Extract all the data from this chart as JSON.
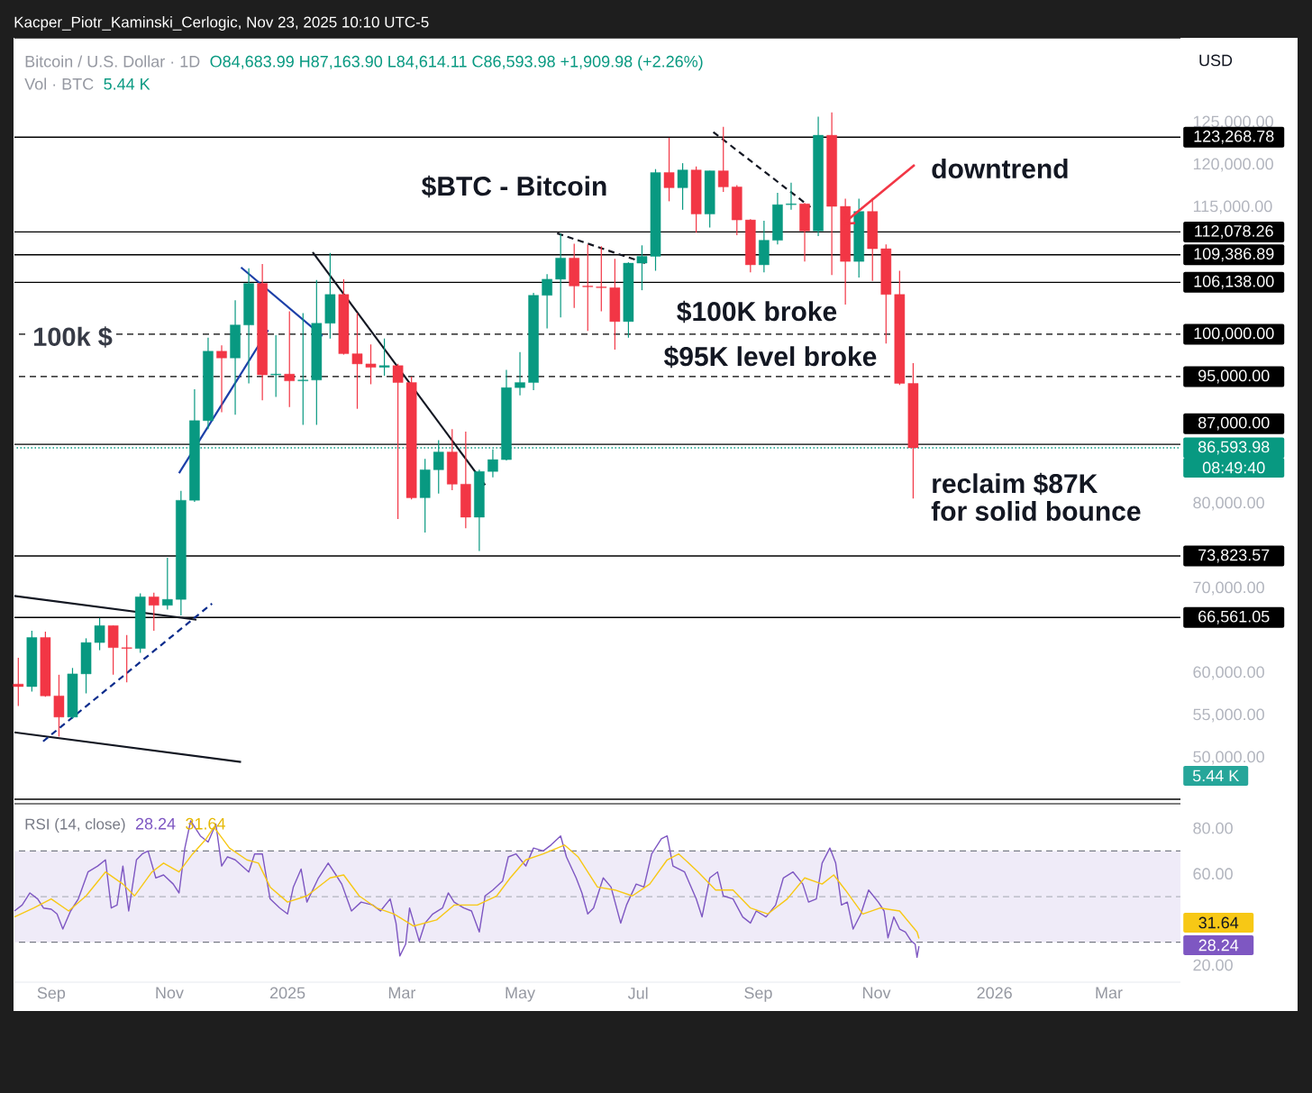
{
  "chart_data": [
    {
      "type": "candlestick",
      "title": "$BTC - Bitcoin",
      "subtitle": "Kacper_Piotr_Kaminski_Cerlogic, Nov 23, 2025 10:10 UTC-5",
      "x": [
        "2024-08-15",
        "2024-08-22",
        "2024-08-29",
        "2024-09-05",
        "2024-09-12",
        "2024-09-19",
        "2024-09-26",
        "2024-10-03",
        "2024-10-10",
        "2024-10-17",
        "2024-10-24",
        "2024-10-31",
        "2024-11-07",
        "2024-11-14",
        "2024-11-21",
        "2024-11-28",
        "2024-12-05",
        "2024-12-12",
        "2024-12-19",
        "2024-12-26",
        "2025-01-02",
        "2025-01-09",
        "2025-01-16",
        "2025-01-23",
        "2025-01-30",
        "2025-02-06",
        "2025-02-13",
        "2025-02-20",
        "2025-02-27",
        "2025-03-06",
        "2025-03-13",
        "2025-03-20",
        "2025-03-27",
        "2025-04-03",
        "2025-04-10",
        "2025-04-17",
        "2025-04-24",
        "2025-05-01",
        "2025-05-08",
        "2025-05-15",
        "2025-05-22",
        "2025-05-29",
        "2025-06-05",
        "2025-06-12",
        "2025-06-19",
        "2025-06-26",
        "2025-07-03",
        "2025-07-10",
        "2025-07-17",
        "2025-07-24",
        "2025-07-31",
        "2025-08-07",
        "2025-08-14",
        "2025-08-21",
        "2025-08-28",
        "2025-09-04",
        "2025-09-11",
        "2025-09-18",
        "2025-09-25",
        "2025-10-02",
        "2025-10-09",
        "2025-10-16",
        "2025-10-23",
        "2025-10-30",
        "2025-11-06",
        "2025-11-13",
        "2025-11-20"
      ],
      "ohlc": [
        [
          58700,
          61800,
          56100,
          58400
        ],
        [
          58400,
          65000,
          57800,
          64200
        ],
        [
          64200,
          64900,
          57200,
          57300
        ],
        [
          57300,
          59800,
          52500,
          54800
        ],
        [
          54800,
          60600,
          54600,
          59900
        ],
        [
          59900,
          64100,
          57600,
          63600
        ],
        [
          63600,
          66500,
          62700,
          65600
        ],
        [
          65600,
          65600,
          59800,
          63000
        ],
        [
          63000,
          64500,
          58900,
          62900
        ],
        [
          62900,
          69400,
          62400,
          69000
        ],
        [
          69000,
          69500,
          65000,
          68000
        ],
        [
          68000,
          73600,
          67500,
          68700
        ],
        [
          68700,
          81500,
          66800,
          80400
        ],
        [
          80400,
          93500,
          80200,
          89800
        ],
        [
          89800,
          99600,
          88800,
          98000
        ],
        [
          98000,
          98700,
          90800,
          97200
        ],
        [
          97200,
          104000,
          90500,
          101100
        ],
        [
          101100,
          107800,
          94200,
          106000
        ],
        [
          106000,
          108300,
          92200,
          95200
        ],
        [
          95200,
          99900,
          92600,
          95300
        ],
        [
          95300,
          102700,
          91400,
          94500
        ],
        [
          94500,
          102500,
          89300,
          94600
        ],
        [
          94600,
          106400,
          89300,
          101300
        ],
        [
          101300,
          109600,
          99500,
          104700
        ],
        [
          104700,
          106500,
          97600,
          97700
        ],
        [
          97700,
          102500,
          91200,
          96500
        ],
        [
          96500,
          98800,
          94100,
          96100
        ],
        [
          96100,
          99500,
          95100,
          96300
        ],
        [
          96300,
          96500,
          78200,
          94300
        ],
        [
          94300,
          95000,
          80500,
          80700
        ],
        [
          80700,
          85300,
          76600,
          84000
        ],
        [
          84000,
          87500,
          81200,
          86100
        ],
        [
          86100,
          88800,
          81600,
          82300
        ],
        [
          82300,
          88500,
          77100,
          78400
        ],
        [
          78400,
          84000,
          74400,
          83800
        ],
        [
          83800,
          86400,
          83100,
          85200
        ],
        [
          85200,
          95800,
          85100,
          93700
        ],
        [
          93700,
          97900,
          92800,
          94300
        ],
        [
          94300,
          104900,
          93400,
          104600
        ],
        [
          104600,
          107100,
          100700,
          106500
        ],
        [
          106500,
          111900,
          102000,
          109000
        ],
        [
          109000,
          110700,
          103100,
          105700
        ],
        [
          105700,
          110600,
          100400,
          105600
        ],
        [
          105600,
          110400,
          102700,
          105500
        ],
        [
          105500,
          108900,
          98200,
          101500
        ],
        [
          101500,
          108500,
          99600,
          108400
        ],
        [
          108400,
          110500,
          105200,
          109200
        ],
        [
          109200,
          119500,
          107500,
          119100
        ],
        [
          119100,
          123200,
          115700,
          117300
        ],
        [
          117300,
          120200,
          114700,
          119400
        ],
        [
          119400,
          119800,
          112000,
          114200
        ],
        [
          114200,
          119300,
          112600,
          119300
        ],
        [
          119300,
          124500,
          116800,
          117400
        ],
        [
          117400,
          117600,
          111700,
          113500
        ],
        [
          113500,
          113600,
          107300,
          108200
        ],
        [
          108200,
          113400,
          107300,
          111100
        ],
        [
          111100,
          116700,
          110600,
          115300
        ],
        [
          115300,
          117900,
          114700,
          115400
        ],
        [
          115400,
          115500,
          108600,
          112200
        ],
        [
          112200,
          125700,
          111600,
          123500
        ],
        [
          123500,
          126200,
          107000,
          115100
        ],
        [
          115100,
          116000,
          103500,
          108600
        ],
        [
          108600,
          116000,
          106700,
          114500
        ],
        [
          114500,
          116100,
          106300,
          110100
        ],
        [
          110100,
          110600,
          98900,
          104700
        ],
        [
          104700,
          107500,
          94000,
          94200
        ],
        [
          94200,
          96600,
          80600,
          86593.98
        ]
      ],
      "xlim": [
        "2024-08-13",
        "2026-04-07"
      ],
      "ylim": [
        45100,
        135000
      ],
      "xticks": [
        {
          "value": "2024-09-01",
          "label": null
        },
        {
          "value": "2024-11-01",
          "label": null
        },
        {
          "value": "2025-01-01",
          "label": null
        },
        {
          "value": "2025-03-01",
          "label": null
        },
        {
          "value": "2025-05-01",
          "label": null
        },
        {
          "value": "2025-07-01",
          "label": null
        },
        {
          "value": "2025-09-01",
          "label": null
        },
        {
          "value": "2025-11-01",
          "label": null
        },
        {
          "value": "2026-01-01",
          "label": null
        },
        {
          "value": "2026-03-01",
          "label": null
        }
      ],
      "yticks": [
        {
          "value": 50000,
          "label": "50,000.00"
        },
        {
          "value": 55000,
          "label": "55,000.00"
        },
        {
          "value": 60000,
          "label": "60,000.00"
        },
        {
          "value": 70000,
          "label": "70,000.00"
        },
        {
          "value": 80000,
          "label": "80,000.00"
        },
        {
          "value": 115000,
          "label": "115,000.00"
        },
        {
          "value": 120000,
          "label": "120,000.00"
        },
        {
          "value": 125000,
          "label": "125,000.00"
        }
      ],
      "tick_labels": "y",
      "ref_lines": [
        {
          "axis": "y",
          "value": 123268.78,
          "label": "123,268.78",
          "color": "#000000",
          "line_style": "solid"
        },
        {
          "axis": "y",
          "value": 112078.26,
          "label": "112,078.26",
          "color": "#000000",
          "line_style": "solid"
        },
        {
          "axis": "y",
          "value": 109386.89,
          "label": "109,386.89",
          "color": "#000000",
          "line_style": "solid"
        },
        {
          "axis": "y",
          "value": 106138,
          "label": "106,138.00",
          "color": "#000000",
          "line_style": "solid"
        },
        {
          "axis": "y",
          "value": 100000,
          "label": "100,000.00",
          "color": "#000000",
          "line_style": "dashed"
        },
        {
          "axis": "y",
          "value": 95000,
          "label": "95,000.00",
          "color": "#000000",
          "line_style": "dashed"
        },
        {
          "axis": "y",
          "value": 87000,
          "label": "87,000.00",
          "color": "#000000",
          "line_style": "solid"
        },
        {
          "axis": "y",
          "value": 86593.98,
          "label": "86,593.98",
          "color": "#089981",
          "line_style": "dotted"
        },
        {
          "axis": "y",
          "value": 73823.57,
          "label": "73,823.57",
          "color": "#000000",
          "line_style": "solid"
        },
        {
          "axis": "y",
          "value": 66561.05,
          "label": "66,561.05",
          "color": "#000000",
          "line_style": "solid"
        }
      ],
      "series": [
        {
          "type": "line",
          "x": [
            "2024-08-13",
            "2024-11-15"
          ],
          "values": [
            69100,
            66300
          ],
          "color": "#131722",
          "line_style": "solid"
        },
        {
          "type": "line",
          "x": [
            "2024-08-13",
            "2024-12-08"
          ],
          "values": [
            53000,
            49500
          ],
          "color": "#131722",
          "line_style": "solid"
        },
        {
          "type": "line",
          "x": [
            "2024-08-26",
            "2024-11-23"
          ],
          "values": [
            51600,
            68200
          ],
          "color": "#0c2c8c",
          "line_style": "dashed"
        },
        {
          "type": "line",
          "x": [
            "2024-11-06",
            "2024-12-22"
          ],
          "values": [
            83600,
            100500
          ],
          "color": "#1c3fa8",
          "line_style": "solid"
        },
        {
          "type": "line",
          "x": [
            "2024-12-08",
            "2025-01-19"
          ],
          "values": [
            107900,
            99800
          ],
          "color": "#1c3fa8",
          "line_style": "solid"
        },
        {
          "type": "line",
          "x": [
            "2025-01-14",
            "2025-04-13"
          ],
          "values": [
            109700,
            82200
          ],
          "color": "#131722",
          "line_style": "solid"
        },
        {
          "type": "line",
          "x": [
            "2025-05-18",
            "2025-07-06"
          ],
          "values": [
            112100,
            108300
          ],
          "color": "#131722",
          "line_style": "dashed"
        },
        {
          "type": "line",
          "x": [
            "2025-08-07",
            "2025-09-28"
          ],
          "values": [
            124200,
            115000
          ],
          "color": "#131722",
          "line_style": "dashed"
        }
      ],
      "annotations": [
        "Bitcoin / U.S. Dollar · 1D",
        "O84,683.99 H87,163.90 L84,614.11 C86,593.98 +1,909.98 (+2.26%)",
        "Vol · BTC",
        "5.44 K",
        "USD",
        "100k $",
        "$100K broke",
        "$95K level broke",
        {
          "text": "downtrend",
          "x": "2025-10-14",
          "y": 112900
        },
        "reclaim $87K",
        "for solid bounce",
        "08:49:40",
        "5.44 K"
      ]
    },
    {
      "type": "line",
      "title": "RSI (14, close)",
      "xlim": [
        "2024-08-13",
        "2026-04-07"
      ],
      "ylim": [
        12.5,
        90.7
      ],
      "xticks": [
        {
          "value": "2024-09-01",
          "label": "Sep"
        },
        {
          "value": "2024-11-01",
          "label": "Nov"
        },
        {
          "value": "2025-01-01",
          "label": "2025"
        },
        {
          "value": "2025-03-01",
          "label": "Mar"
        },
        {
          "value": "2025-05-01",
          "label": "May"
        },
        {
          "value": "2025-07-01",
          "label": "Jul"
        },
        {
          "value": "2025-09-01",
          "label": "Sep"
        },
        {
          "value": "2025-11-01",
          "label": "Nov"
        },
        {
          "value": "2026-01-01",
          "label": "2026"
        },
        {
          "value": "2026-03-01",
          "label": "Mar"
        }
      ],
      "yticks": [
        {
          "value": 20,
          "label": "20.00"
        },
        {
          "value": 60,
          "label": "60.00"
        },
        {
          "value": 80,
          "label": "80.00"
        }
      ],
      "bands": [
        {
          "axis": "y",
          "from": 30,
          "to": 70,
          "color": "#efebf8"
        }
      ],
      "ref_lines": [
        {
          "axis": "y",
          "value": 70,
          "color": "#787b86",
          "line_style": "dashed"
        },
        {
          "axis": "y",
          "value": 50,
          "color": "#b2b5be",
          "line_style": "dashed"
        },
        {
          "axis": "y",
          "value": 30,
          "color": "#787b86",
          "line_style": "dashed"
        }
      ],
      "series": [
        {
          "color": "#7e57c2",
          "x": [
            "2024-08-13",
            "2024-08-17",
            "2024-08-21",
            "2024-08-25",
            "2024-08-28",
            "2024-09-01",
            "2024-09-04",
            "2024-09-07",
            "2024-09-11",
            "2024-09-15",
            "2024-09-20",
            "2024-09-25",
            "2024-09-29",
            "2024-10-02",
            "2024-10-05",
            "2024-10-08",
            "2024-10-11",
            "2024-10-15",
            "2024-10-18",
            "2024-10-21",
            "2024-10-25",
            "2024-10-29",
            "2024-11-03",
            "2024-11-06",
            "2024-11-09",
            "2024-11-12",
            "2024-11-17",
            "2024-11-21",
            "2024-11-25",
            "2024-11-28",
            "2024-12-01",
            "2024-12-05",
            "2024-12-12",
            "2024-12-15",
            "2024-12-19",
            "2024-12-23",
            "2024-12-28",
            "2025-01-01",
            "2025-01-04",
            "2025-01-08",
            "2025-01-11",
            "2025-01-17",
            "2025-01-22",
            "2025-01-26",
            "2025-01-29",
            "2025-02-03",
            "2025-02-08",
            "2025-02-14",
            "2025-02-18",
            "2025-02-23",
            "2025-02-26",
            "2025-02-28",
            "2025-03-03",
            "2025-03-05",
            "2025-03-10",
            "2025-03-13",
            "2025-03-17",
            "2025-03-22",
            "2025-03-25",
            "2025-03-28",
            "2025-04-02",
            "2025-04-06",
            "2025-04-10",
            "2025-04-13",
            "2025-04-17",
            "2025-04-22",
            "2025-04-25",
            "2025-04-29",
            "2025-05-04",
            "2025-05-08",
            "2025-05-13",
            "2025-05-17",
            "2025-05-22",
            "2025-05-25",
            "2025-05-30",
            "2025-06-02",
            "2025-06-05",
            "2025-06-08",
            "2025-06-13",
            "2025-06-17",
            "2025-06-22",
            "2025-06-25",
            "2025-06-30",
            "2025-07-04",
            "2025-07-08",
            "2025-07-13",
            "2025-07-16",
            "2025-07-19",
            "2025-07-25",
            "2025-07-31",
            "2025-08-03",
            "2025-08-07",
            "2025-08-11",
            "2025-08-14",
            "2025-08-19",
            "2025-08-24",
            "2025-08-28",
            "2025-08-31",
            "2025-09-05",
            "2025-09-10",
            "2025-09-14",
            "2025-09-19",
            "2025-09-24",
            "2025-09-27",
            "2025-10-01",
            "2025-10-04",
            "2025-10-08",
            "2025-10-11",
            "2025-10-14",
            "2025-10-17",
            "2025-10-20",
            "2025-10-24",
            "2025-10-28",
            "2025-11-02",
            "2025-11-05",
            "2025-11-07",
            "2025-11-10",
            "2025-11-13",
            "2025-11-16",
            "2025-11-19",
            "2025-11-21",
            "2025-11-22",
            "2025-11-23"
          ],
          "values": [
            43.7,
            46.3,
            51.6,
            49.0,
            45.0,
            44.5,
            42.4,
            35.8,
            43.7,
            49.0,
            60.8,
            63.4,
            66.1,
            45.0,
            46.3,
            63.4,
            43.7,
            66.1,
            68.7,
            70.0,
            58.2,
            59.5,
            55.5,
            51.6,
            71.3,
            83.2,
            76.6,
            73.9,
            81.8,
            63.4,
            67.4,
            66.1,
            60.8,
            68.7,
            68.7,
            49.0,
            45.0,
            42.4,
            54.2,
            62.1,
            47.6,
            58.2,
            64.7,
            59.5,
            55.5,
            43.7,
            47.6,
            46.3,
            43.7,
            49.0,
            38.4,
            24.0,
            29.2,
            45.0,
            30.5,
            38.4,
            42.4,
            45.0,
            51.6,
            47.6,
            45.0,
            43.7,
            34.5,
            50.3,
            52.9,
            56.8,
            67.4,
            68.7,
            63.4,
            71.3,
            70.0,
            72.6,
            76.6,
            67.4,
            58.2,
            51.6,
            42.4,
            45.0,
            58.2,
            54.2,
            38.4,
            46.3,
            55.5,
            54.2,
            68.7,
            75.3,
            76.6,
            63.4,
            60.8,
            49.0,
            41.1,
            58.2,
            60.8,
            50.3,
            49.0,
            41.1,
            38.4,
            43.7,
            41.1,
            46.3,
            58.2,
            60.8,
            55.5,
            47.6,
            49.0,
            64.7,
            71.3,
            64.7,
            46.3,
            47.6,
            35.8,
            42.4,
            52.9,
            47.6,
            43.7,
            31.9,
            41.1,
            35.8,
            34.5,
            30.5,
            29.2,
            23.4,
            28.24
          ]
        },
        {
          "color": "#f7c815",
          "x": [
            "2024-08-13",
            "2024-08-23",
            "2024-09-01",
            "2024-09-10",
            "2024-09-19",
            "2024-09-29",
            "2024-10-08",
            "2024-10-14",
            "2024-10-23",
            "2024-10-29",
            "2024-11-06",
            "2024-11-13",
            "2024-11-20",
            "2024-11-24",
            "2024-12-02",
            "2024-12-11",
            "2024-12-17",
            "2024-12-23",
            "2025-01-01",
            "2025-01-11",
            "2025-01-23",
            "2025-01-30",
            "2025-02-07",
            "2025-02-16",
            "2025-02-25",
            "2025-03-07",
            "2025-03-19",
            "2025-03-28",
            "2025-04-09",
            "2025-04-19",
            "2025-04-26",
            "2025-05-04",
            "2025-05-13",
            "2025-05-24",
            "2025-05-31",
            "2025-06-10",
            "2025-06-19",
            "2025-06-28",
            "2025-07-07",
            "2025-07-16",
            "2025-07-22",
            "2025-08-01",
            "2025-08-10",
            "2025-08-19",
            "2025-08-28",
            "2025-09-06",
            "2025-09-16",
            "2025-09-25",
            "2025-10-04",
            "2025-10-10",
            "2025-10-16",
            "2025-10-25",
            "2025-11-03",
            "2025-11-13",
            "2025-11-22",
            "2025-11-23"
          ],
          "values": [
            41.1,
            45.0,
            49.0,
            43.7,
            50.3,
            60.8,
            55.5,
            50.3,
            60.8,
            64.7,
            60.8,
            68.7,
            75.3,
            80.5,
            71.3,
            66.1,
            64.7,
            54.2,
            47.6,
            50.3,
            58.2,
            59.5,
            50.3,
            45.0,
            42.4,
            37.1,
            39.8,
            46.3,
            46.3,
            50.3,
            58.2,
            66.1,
            68.7,
            72.6,
            67.4,
            54.2,
            52.9,
            50.3,
            55.5,
            66.1,
            68.7,
            60.8,
            52.9,
            52.9,
            45.0,
            42.4,
            49.0,
            58.2,
            55.5,
            59.5,
            52.9,
            42.4,
            45.0,
            43.7,
            34.5,
            31.64
          ]
        }
      ],
      "annotations": [
        "28.24",
        "31.64",
        "31.64",
        "28.24"
      ]
    }
  ]
}
